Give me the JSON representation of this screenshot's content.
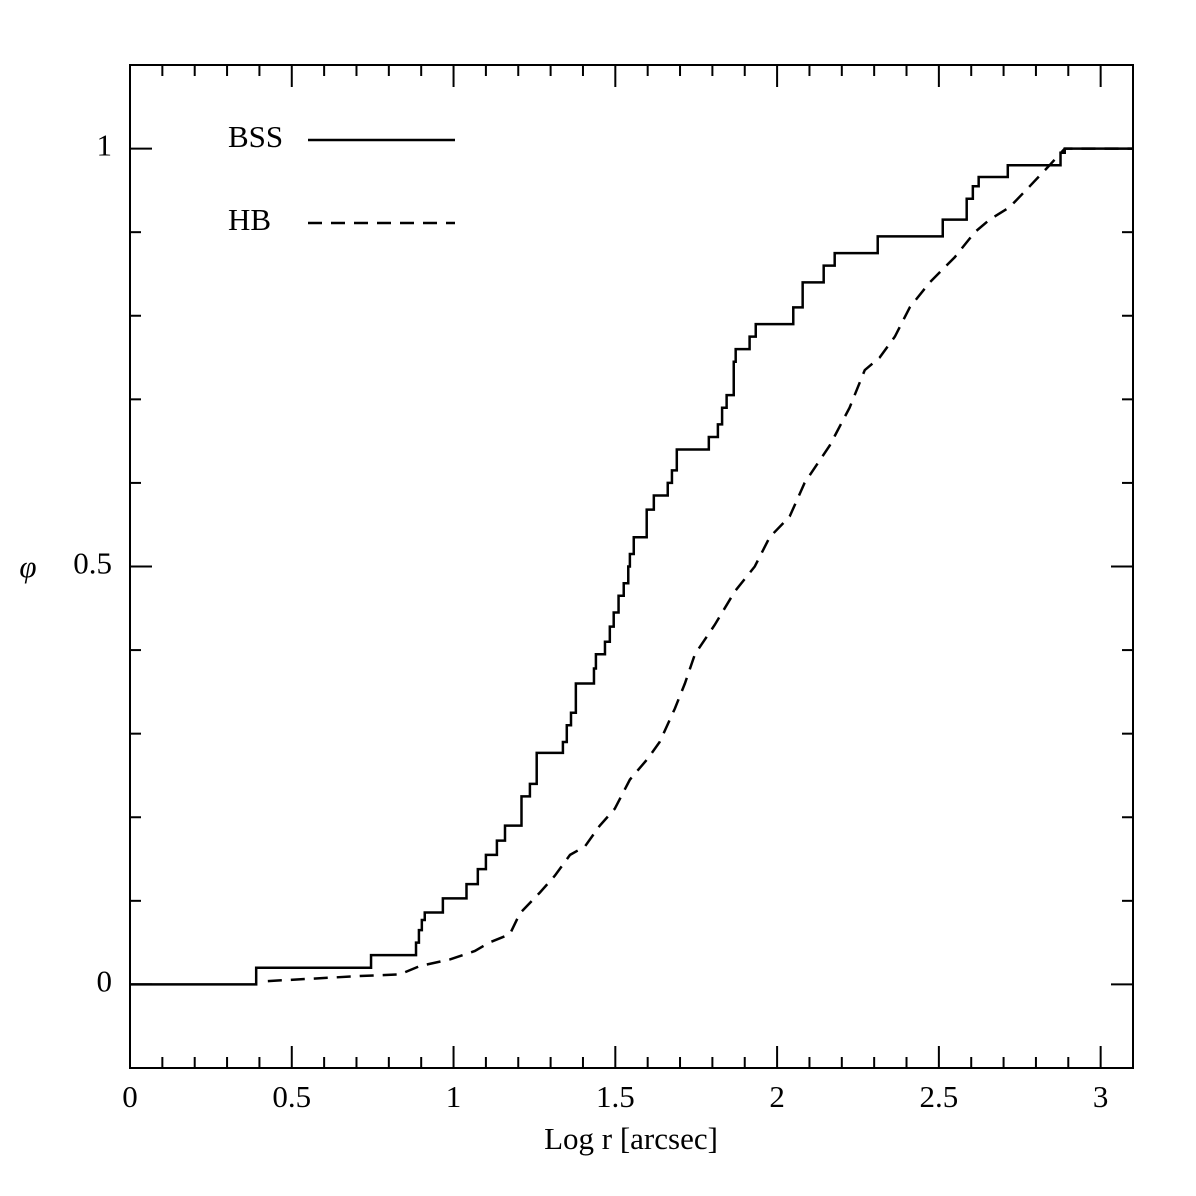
{
  "chart_data": {
    "type": "line",
    "xlabel": "Log r [arcsec]",
    "ylabel": "φ",
    "xlim": [
      0,
      3.1
    ],
    "ylim": [
      -0.1,
      1.1
    ],
    "xticks": [
      0,
      0.5,
      1,
      1.5,
      2,
      2.5,
      3
    ],
    "yticks": [
      0,
      0.5,
      1
    ],
    "xminorticks": [
      0.1,
      0.2,
      0.3,
      0.4,
      0.6,
      0.7,
      0.8,
      0.9,
      1.1,
      1.2,
      1.3,
      1.4,
      1.6,
      1.7,
      1.8,
      1.9,
      2.1,
      2.2,
      2.3,
      2.4,
      2.6,
      2.7,
      2.8,
      2.9,
      3.1
    ],
    "yminorticks": [
      -0.1,
      0.1,
      0.2,
      0.3,
      0.4,
      0.6,
      0.7,
      0.8,
      0.9,
      1.1
    ],
    "legend": "upper left",
    "series": [
      {
        "name": "BSS",
        "color": "#000000",
        "style": "solid",
        "step": "post",
        "x": [
          0,
          0.39,
          0.745,
          0.884,
          0.893,
          0.902,
          0.911,
          0.967,
          1.04,
          1.075,
          1.1,
          1.134,
          1.159,
          1.21,
          1.236,
          1.257,
          1.338,
          1.35,
          1.363,
          1.378,
          1.434,
          1.44,
          1.468,
          1.483,
          1.495,
          1.51,
          1.526,
          1.54,
          1.545,
          1.557,
          1.597,
          1.619,
          1.662,
          1.675,
          1.69,
          1.789,
          1.817,
          1.83,
          1.844,
          1.866,
          1.872,
          1.915,
          1.934,
          2.05,
          2.079,
          2.144,
          2.178,
          2.311,
          2.512,
          2.586,
          2.605,
          2.623,
          2.713,
          2.876,
          2.889,
          3.1
        ],
        "values": [
          0,
          0.02,
          0.035,
          0.05,
          0.065,
          0.077,
          0.086,
          0.103,
          0.12,
          0.138,
          0.155,
          0.172,
          0.19,
          0.225,
          0.24,
          0.277,
          0.29,
          0.31,
          0.325,
          0.36,
          0.378,
          0.395,
          0.41,
          0.428,
          0.445,
          0.465,
          0.48,
          0.5,
          0.515,
          0.535,
          0.568,
          0.585,
          0.6,
          0.615,
          0.64,
          0.655,
          0.67,
          0.69,
          0.705,
          0.745,
          0.76,
          0.775,
          0.79,
          0.81,
          0.84,
          0.86,
          0.875,
          0.895,
          0.915,
          0.94,
          0.955,
          0.966,
          0.98,
          0.995,
          1,
          1
        ]
      },
      {
        "name": "HB",
        "color": "#000000",
        "style": "dashed",
        "x": [
          0.426,
          0.71,
          0.834,
          0.896,
          0.99,
          1.066,
          1.11,
          1.174,
          1.205,
          1.267,
          1.313,
          1.36,
          1.406,
          1.452,
          1.498,
          1.545,
          1.6,
          1.637,
          1.684,
          1.715,
          1.746,
          1.807,
          1.869,
          1.931,
          1.977,
          2.039,
          2.085,
          2.163,
          2.224,
          2.271,
          2.317,
          2.364,
          2.41,
          2.472,
          2.549,
          2.611,
          2.657,
          2.719,
          2.781,
          2.842,
          2.889,
          3.1
        ],
        "values": [
          0.004,
          0.01,
          0.012,
          0.022,
          0.03,
          0.04,
          0.05,
          0.06,
          0.085,
          0.11,
          0.13,
          0.155,
          0.165,
          0.19,
          0.21,
          0.245,
          0.27,
          0.29,
          0.33,
          0.36,
          0.395,
          0.43,
          0.47,
          0.5,
          0.535,
          0.56,
          0.6,
          0.645,
          0.69,
          0.735,
          0.75,
          0.775,
          0.81,
          0.84,
          0.87,
          0.9,
          0.915,
          0.93,
          0.955,
          0.98,
          1,
          1
        ]
      }
    ]
  }
}
